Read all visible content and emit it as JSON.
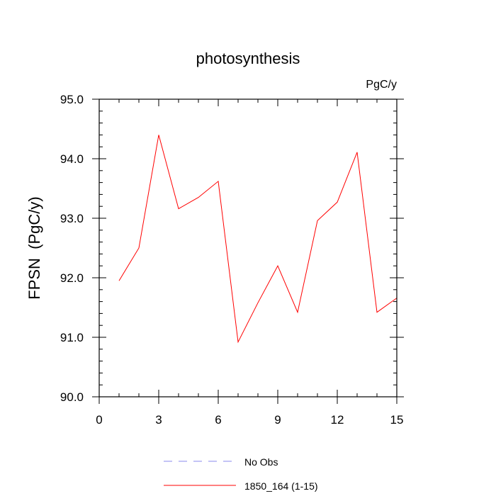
{
  "chart_data": {
    "type": "line",
    "title": "photosynthesis",
    "units_label": "PgC/y",
    "ylabel": "FPSN  (PgC/y)",
    "xlabel": "",
    "xlim": [
      0,
      15
    ],
    "ylim": [
      90.0,
      95.0
    ],
    "x_ticks": [
      0,
      3,
      6,
      9,
      12,
      15
    ],
    "x_tick_labels": [
      "0",
      "3",
      "6",
      "9",
      "12",
      "15"
    ],
    "y_ticks": [
      90.0,
      91.0,
      92.0,
      93.0,
      94.0,
      95.0
    ],
    "y_tick_labels": [
      "90.0",
      "91.0",
      "92.0",
      "93.0",
      "94.0",
      "95.0"
    ],
    "grid": false,
    "legend_position": "bottom",
    "series": [
      {
        "name": "1850_164 (1-15)",
        "color": "#ff0000",
        "style": "solid",
        "x": [
          1,
          2,
          3,
          4,
          5,
          6,
          7,
          8,
          9,
          10,
          11,
          12,
          13,
          14,
          15
        ],
        "y": [
          91.95,
          92.5,
          94.4,
          93.16,
          93.35,
          93.62,
          90.92,
          91.58,
          92.2,
          91.42,
          92.96,
          93.27,
          94.11,
          91.42,
          91.66
        ]
      }
    ],
    "legend": [
      {
        "label": "No Obs",
        "color": "#8a8aee",
        "style": "dashed"
      },
      {
        "label": "1850_164 (1-15)",
        "color": "#ff0000",
        "style": "solid"
      }
    ]
  }
}
